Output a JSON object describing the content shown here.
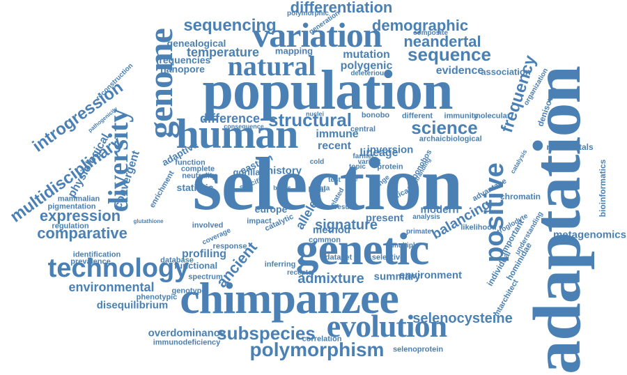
{
  "palette": {
    "word": "#4a80b3",
    "background": "#ffffff"
  },
  "words": [
    {
      "text": "selection",
      "weight": 1.0
    },
    {
      "text": "adaptation",
      "weight": 0.95
    },
    {
      "text": "population",
      "weight": 0.9
    },
    {
      "text": "genetic",
      "weight": 0.8
    },
    {
      "text": "chimpanzee",
      "weight": 0.8
    },
    {
      "text": "human",
      "weight": 0.75
    },
    {
      "text": "genome",
      "weight": 0.7
    },
    {
      "text": "variation",
      "weight": 0.65
    },
    {
      "text": "evolution",
      "weight": 0.6
    },
    {
      "text": "natural",
      "weight": 0.5
    },
    {
      "text": "diversity",
      "weight": 0.5
    },
    {
      "text": "technology",
      "weight": 0.45
    },
    {
      "text": "polymorphism",
      "weight": 0.45
    },
    {
      "text": "structural",
      "weight": 0.45
    },
    {
      "text": "science",
      "weight": 0.45
    },
    {
      "text": "sequence",
      "weight": 0.45
    },
    {
      "text": "positive",
      "weight": 0.45
    },
    {
      "text": "subspecies",
      "weight": 0.4
    },
    {
      "text": "multidisciplinary",
      "weight": 0.35
    },
    {
      "text": "introgression",
      "weight": 0.35
    },
    {
      "text": "sequencing",
      "weight": 0.35
    },
    {
      "text": "demographic",
      "weight": 0.35
    },
    {
      "text": "differentiation",
      "weight": 0.35
    },
    {
      "text": "neandertal",
      "weight": 0.35
    },
    {
      "text": "frequency",
      "weight": 0.35
    },
    {
      "text": "comparative",
      "weight": 0.35
    },
    {
      "text": "expression",
      "weight": 0.35
    },
    {
      "text": "difference",
      "weight": 0.3
    },
    {
      "text": "ancient",
      "weight": 0.3
    },
    {
      "text": "admixture",
      "weight": 0.3
    },
    {
      "text": "environmental",
      "weight": 0.3
    },
    {
      "text": "temperature",
      "weight": 0.3
    },
    {
      "text": "balancing",
      "weight": 0.3
    },
    {
      "text": "selenocysteine",
      "weight": 0.3
    },
    {
      "text": "signature",
      "weight": 0.3
    },
    {
      "text": "allele",
      "weight": 0.3
    },
    {
      "text": "convergent",
      "weight": 0.25
    },
    {
      "text": "physiological",
      "weight": 0.25
    },
    {
      "text": "disequilibrium",
      "weight": 0.25
    },
    {
      "text": "profiling",
      "weight": 0.25
    },
    {
      "text": "overdominance",
      "weight": 0.25
    },
    {
      "text": "metagenomics",
      "weight": 0.25
    },
    {
      "text": "environment",
      "weight": 0.25
    },
    {
      "text": "summary",
      "weight": 0.25
    },
    {
      "text": "mutation",
      "weight": 0.25
    },
    {
      "text": "polygenic",
      "weight": 0.25
    },
    {
      "text": "evidence",
      "weight": 0.25
    },
    {
      "text": "association",
      "weight": 0.2
    },
    {
      "text": "nanopore",
      "weight": 0.25
    },
    {
      "text": "frequencies",
      "weight": 0.25
    },
    {
      "text": "genealogical",
      "weight": 0.25
    },
    {
      "text": "immune",
      "weight": 0.25
    },
    {
      "text": "recent",
      "weight": 0.25
    },
    {
      "text": "lineage",
      "weight": 0.25
    },
    {
      "text": "inversion",
      "weight": 0.25
    },
    {
      "text": "history",
      "weight": 0.25
    },
    {
      "text": "method",
      "weight": 0.25
    },
    {
      "text": "present",
      "weight": 0.25
    },
    {
      "text": "modern",
      "weight": 0.25
    },
    {
      "text": "europe",
      "weight": 0.25
    },
    {
      "text": "adaptive",
      "weight": 0.25
    },
    {
      "text": "statistic",
      "weight": 0.25
    },
    {
      "text": "eastern",
      "weight": 0.2
    },
    {
      "text": "gorilla",
      "weight": 0.2
    },
    {
      "text": "denisovan",
      "weight": 0.2
    },
    {
      "text": "neandertals",
      "weight": 0.2
    },
    {
      "text": "bioinformatics",
      "weight": 0.2
    },
    {
      "text": "chromatin",
      "weight": 0.2
    },
    {
      "text": "hominidae",
      "weight": 0.2
    },
    {
      "text": "individual",
      "weight": 0.2
    },
    {
      "text": "important",
      "weight": 0.2
    },
    {
      "text": "mapping",
      "weight": 0.2
    },
    {
      "text": "selenoprotein",
      "weight": 0.15
    },
    {
      "text": "immunodeficiency",
      "weight": 0.15
    },
    {
      "text": "correlation",
      "weight": 0.15
    },
    {
      "text": "genotype",
      "weight": 0.15
    },
    {
      "text": "phenotypic",
      "weight": 0.15
    },
    {
      "text": "mammalian",
      "weight": 0.15
    },
    {
      "text": "pigmentation",
      "weight": 0.15
    },
    {
      "text": "regulation",
      "weight": 0.15
    },
    {
      "text": "identification",
      "weight": 0.15
    },
    {
      "text": "prevalence",
      "weight": 0.15
    },
    {
      "text": "database",
      "weight": 0.15
    },
    {
      "text": "functional",
      "weight": 0.2
    },
    {
      "text": "spectrum",
      "weight": 0.15
    },
    {
      "text": "response",
      "weight": 0.15
    },
    {
      "text": "common",
      "weight": 0.15
    },
    {
      "text": "dataset",
      "weight": 0.15
    },
    {
      "text": "selective",
      "weight": 0.15
    },
    {
      "text": "inferring",
      "weight": 0.15
    },
    {
      "text": "involved",
      "weight": 0.15
    },
    {
      "text": "impact",
      "weight": 0.15
    },
    {
      "text": "catalytic",
      "weight": 0.15
    },
    {
      "text": "local",
      "weight": 0.15
    },
    {
      "text": "neutrality",
      "weight": 0.15
    },
    {
      "text": "complete",
      "weight": 0.15
    },
    {
      "text": "function",
      "weight": 0.15
    },
    {
      "text": "enrichment",
      "weight": 0.15
    },
    {
      "text": "bonobo",
      "weight": 0.15
    },
    {
      "text": "bonobos",
      "weight": 0.15
    },
    {
      "text": "different",
      "weight": 0.15
    },
    {
      "text": "immunity",
      "weight": 0.15
    },
    {
      "text": "molecular",
      "weight": 0.15
    },
    {
      "text": "archaic",
      "weight": 0.15
    },
    {
      "text": "biological",
      "weight": 0.15
    },
    {
      "text": "central",
      "weight": 0.15
    },
    {
      "text": "protein",
      "weight": 0.15
    },
    {
      "text": "optical",
      "weight": 0.15
    },
    {
      "text": "advantage",
      "weight": 0.15
    },
    {
      "text": "likelihood",
      "weight": 0.15
    },
    {
      "text": "analysis",
      "weight": 0.15
    },
    {
      "text": "primate",
      "weight": 0.15
    },
    {
      "text": "mtarchitect",
      "weight": 0.15
    },
    {
      "text": "understanding",
      "weight": 0.15
    },
    {
      "text": "troglodyte",
      "weight": 0.15
    },
    {
      "text": "organization",
      "weight": 0.15
    },
    {
      "text": "composite",
      "weight": 0.15
    },
    {
      "text": "polymorphic",
      "weight": 0.15
    },
    {
      "text": "generation",
      "weight": 0.15
    },
    {
      "text": "deleterious",
      "weight": 0.15
    },
    {
      "text": "reconstruction",
      "weight": 0.15
    },
    {
      "text": "pathogenicity",
      "weight": 0.12
    },
    {
      "text": "glutathione",
      "weight": 0.12
    },
    {
      "text": "farmer",
      "weight": 0.12
    },
    {
      "text": "variant",
      "weight": 0.12
    },
    {
      "text": "topic",
      "weight": 0.12
    },
    {
      "text": "result",
      "weight": 0.12
    },
    {
      "text": "related",
      "weight": 0.12
    },
    {
      "text": "multiple",
      "weight": 0.12
    },
    {
      "text": "receptor",
      "weight": 0.12
    },
    {
      "text": "coverage",
      "weight": 0.12
    },
    {
      "text": "nuclei",
      "weight": 0.12
    },
    {
      "text": "consequence",
      "weight": 0.12
    },
    {
      "text": "change",
      "weight": 0.12
    },
    {
      "text": "cold",
      "weight": 0.12
    },
    {
      "text": "test",
      "weight": 0.12
    },
    {
      "text": "site",
      "weight": 0.12
    },
    {
      "text": "data",
      "weight": 0.12
    },
    {
      "text": "bayes",
      "weight": 0.12
    },
    {
      "text": "specific",
      "weight": 0.12
    },
    {
      "text": "catalysis",
      "weight": 0.12
    },
    {
      "text": "stranding",
      "weight": 0.12
    }
  ]
}
